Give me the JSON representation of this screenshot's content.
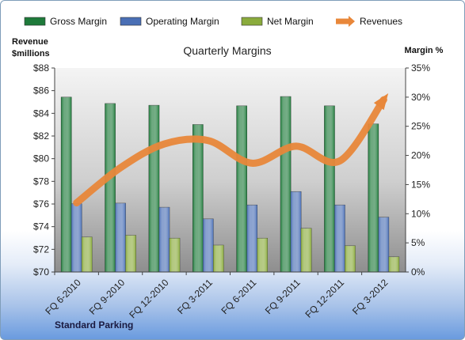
{
  "chart_data": {
    "type": "bar",
    "title": "Quarterly Margins",
    "categories": [
      "FQ 6-2010",
      "FQ 9-2010",
      "FQ 12-2010",
      "FQ 3-2011",
      "FQ 6-2011",
      "FQ 9-2011",
      "FQ 12-2011",
      "FQ 3-2012"
    ],
    "series": [
      {
        "name": "Gross Margin",
        "type": "bar",
        "axis": "right",
        "color": "#1e7a3a",
        "values": [
          30.0,
          28.9,
          28.6,
          25.3,
          28.5,
          30.1,
          28.5,
          25.4
        ]
      },
      {
        "name": "Operating Margin",
        "type": "bar",
        "axis": "right",
        "color": "#4a6fb5",
        "values": [
          11.7,
          11.8,
          11.1,
          9.1,
          11.5,
          13.8,
          11.5,
          9.4
        ]
      },
      {
        "name": "Net Margin",
        "type": "bar",
        "axis": "right",
        "color": "#8aab3c",
        "values": [
          6.0,
          6.3,
          5.8,
          4.6,
          5.8,
          7.5,
          4.5,
          2.6
        ]
      },
      {
        "name": "Revenues",
        "type": "line",
        "axis": "left",
        "color": "#e8873a",
        "values": [
          76.1,
          79.2,
          81.3,
          81.6,
          79.6,
          81.1,
          79.8,
          85.2
        ]
      }
    ],
    "y_left": {
      "label_line1": "Revenue",
      "label_line2": "$millions",
      "min": 70,
      "max": 88,
      "step": 2,
      "tick_prefix": "$"
    },
    "y_right": {
      "label": "Margin %",
      "min": 0,
      "max": 35,
      "step": 5,
      "tick_suffix": "%"
    },
    "legend_position": "top",
    "grid": false,
    "plot_background": "gray gradient"
  },
  "footer_label": "Standard Parking"
}
